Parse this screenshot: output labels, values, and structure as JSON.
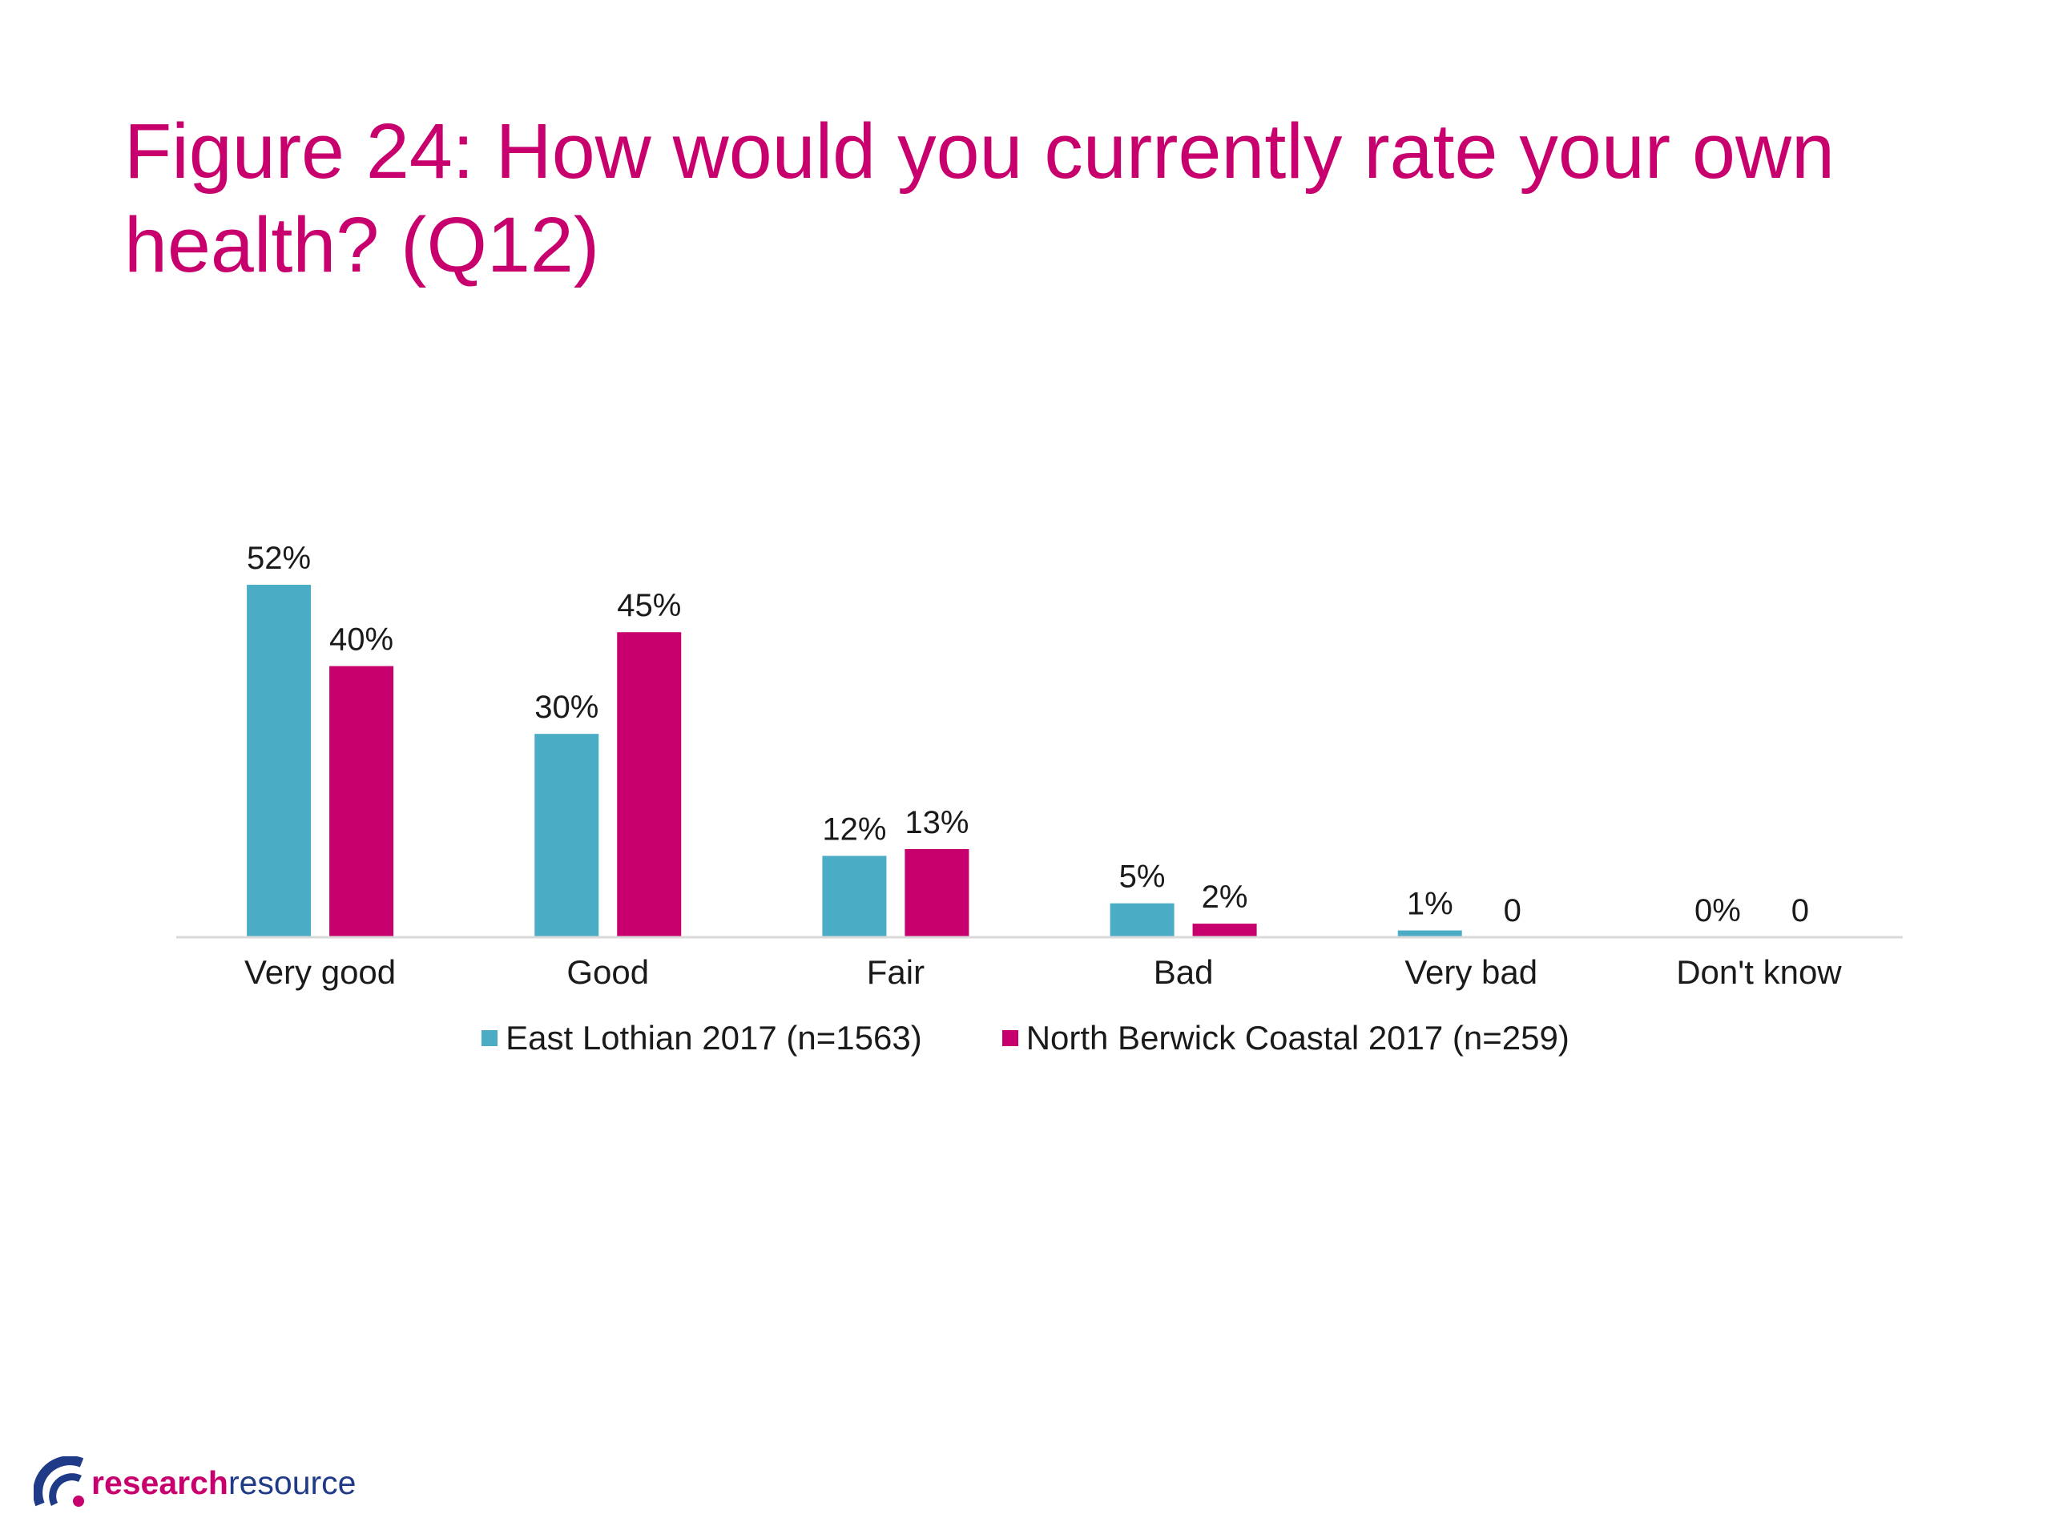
{
  "title": "Figure 24: How would you currently rate your own health? (Q12)",
  "colors": {
    "title": "#c8006e",
    "series_a": "#4bacc6",
    "series_b": "#c8006e",
    "logo_dark": "#1f3b88",
    "logo_accent": "#c8006e"
  },
  "legend": [
    {
      "label": "East Lothian 2017 (n=1563)"
    },
    {
      "label": "North Berwick Coastal 2017 (n=259)"
    }
  ],
  "logo": {
    "word_a": "research",
    "word_b": "resource",
    "icon": "research-resource-logo-icon"
  },
  "chart_data": {
    "type": "bar",
    "categories": [
      "Very good",
      "Good",
      "Fair",
      "Bad",
      "Very bad",
      "Don't know"
    ],
    "series": [
      {
        "name": "East Lothian 2017 (n=1563)",
        "values": [
          52,
          30,
          12,
          5,
          1,
          0
        ],
        "labels": [
          "52%",
          "30%",
          "12%",
          "5%",
          "1%",
          "0%"
        ]
      },
      {
        "name": "North Berwick Coastal 2017 (n=259)",
        "values": [
          40,
          45,
          13,
          2,
          0,
          0
        ],
        "labels": [
          "40%",
          "45%",
          "13%",
          "2%",
          "0",
          "0"
        ]
      }
    ],
    "ylim": [
      0,
      52
    ],
    "grid": false,
    "legend_position": "bottom"
  }
}
